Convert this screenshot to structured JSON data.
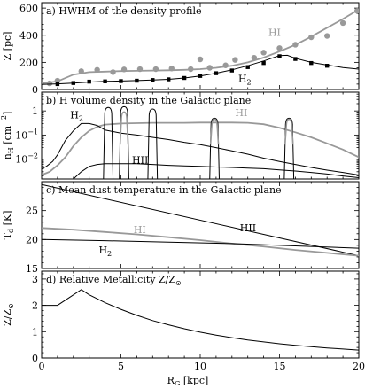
{
  "x_axis": {
    "label": "R",
    "label_sub": "G",
    "label_unit": " [kpc]",
    "range": [
      0,
      20
    ],
    "ticks": [
      "0",
      "5",
      "10",
      "15",
      "20"
    ]
  },
  "chart_data": [
    {
      "id": "a",
      "type": "line",
      "title": "a) HWHM of the density profile",
      "ylabel": "Z [pc]",
      "ylim": [
        0,
        640
      ],
      "yscale": "linear",
      "yticks": [
        {
          "v": 0,
          "t": "0"
        },
        {
          "v": 200,
          "t": "200"
        },
        {
          "v": 400,
          "t": "400"
        },
        {
          "v": 600,
          "t": "600"
        }
      ],
      "series": [
        {
          "name": "HI",
          "color": "#999999",
          "kind": "line",
          "x": [
            0,
            1,
            2,
            3,
            4,
            5,
            6,
            7,
            8,
            9,
            10,
            11,
            12,
            13,
            14,
            15,
            16,
            17,
            18,
            19,
            20
          ],
          "y": [
            45,
            60,
            110,
            128,
            132,
            136,
            138,
            140,
            142,
            145,
            150,
            160,
            175,
            200,
            235,
            280,
            330,
            390,
            455,
            520,
            590
          ]
        },
        {
          "name": "HI obs",
          "color": "#999999",
          "kind": "points",
          "marker": "circle",
          "x": [
            0.5,
            1,
            2.5,
            3.5,
            4.5,
            5.2,
            6.2,
            7.2,
            8.2,
            9.4,
            10,
            10.6,
            11.6,
            12.2,
            13.4,
            14,
            15,
            16,
            17,
            18,
            19,
            19.9
          ],
          "y": [
            45,
            65,
            135,
            145,
            128,
            148,
            150,
            150,
            155,
            150,
            222,
            160,
            178,
            218,
            234,
            272,
            305,
            330,
            385,
            395,
            490,
            580
          ]
        },
        {
          "name": "H2",
          "color": "#000000",
          "kind": "line",
          "x": [
            0,
            1,
            2,
            3,
            4,
            5,
            6,
            7,
            8,
            9,
            10,
            11,
            12,
            13,
            14,
            15,
            15.5,
            16,
            17,
            18,
            19,
            20
          ],
          "y": [
            38,
            42,
            48,
            55,
            60,
            63,
            66,
            70,
            75,
            85,
            100,
            120,
            145,
            175,
            210,
            250,
            252,
            230,
            200,
            180,
            162,
            150
          ]
        },
        {
          "name": "H2 obs",
          "color": "#000000",
          "kind": "points",
          "marker": "square",
          "x": [
            1,
            2,
            3,
            4,
            5,
            6,
            7,
            8,
            9,
            10,
            11,
            12,
            13,
            14,
            15,
            16,
            17,
            18
          ],
          "y": [
            40,
            48,
            58,
            60,
            62,
            65,
            70,
            75,
            85,
            100,
            120,
            140,
            165,
            195,
            245,
            225,
            195,
            175
          ]
        }
      ],
      "annotations": [
        {
          "text": "HI",
          "x": 14.3,
          "y": 395,
          "color": "#999999"
        },
        {
          "text": "H",
          "sub": "2",
          "x": 12.4,
          "y": 55,
          "color": "#000000"
        }
      ]
    },
    {
      "id": "b",
      "type": "line",
      "title": "b) H volume density in the Galactic plane",
      "ylabel": "n",
      "ylabel_sub": "H",
      "ylabel_unit": " [cm",
      "ylabel_sup": "−2",
      "ylabel_end": "]",
      "ylim": [
        0.0015,
        6
      ],
      "yscale": "log",
      "yticks": [
        {
          "v": 0.01,
          "t": "10",
          "sup": "−2"
        },
        {
          "v": 0.1,
          "t": "10",
          "sup": "−1"
        },
        {
          "v": 1,
          "t": "1"
        }
      ],
      "series": [
        {
          "name": "HI",
          "color": "#999999",
          "kind": "line",
          "x": [
            0,
            0.5,
            1,
            1.5,
            2,
            2.5,
            3,
            3.5,
            4,
            5,
            6,
            7,
            8,
            9,
            10,
            11,
            12,
            13,
            14,
            15,
            16,
            17,
            18,
            19,
            20
          ],
          "y": [
            0.0022,
            0.003,
            0.0055,
            0.012,
            0.035,
            0.08,
            0.15,
            0.22,
            0.27,
            0.3,
            0.31,
            0.32,
            0.32,
            0.32,
            0.33,
            0.33,
            0.33,
            0.32,
            0.28,
            0.2,
            0.13,
            0.08,
            0.045,
            0.025,
            0.012
          ]
        },
        {
          "name": "H2",
          "color": "#000000",
          "kind": "line",
          "x": [
            0,
            0.3,
            0.7,
            1,
            1.5,
            2,
            2.5,
            3,
            3.5,
            4,
            5,
            6,
            7,
            8,
            9,
            10,
            11,
            12,
            13,
            14,
            15,
            16,
            17,
            18,
            19,
            20
          ],
          "y": [
            0.004,
            0.005,
            0.008,
            0.015,
            0.06,
            0.15,
            0.3,
            0.3,
            0.25,
            0.16,
            0.12,
            0.1,
            0.08,
            0.065,
            0.05,
            0.04,
            0.03,
            0.022,
            0.016,
            0.011,
            0.008,
            0.006,
            0.0045,
            0.0035,
            0.0028,
            0.0022
          ]
        },
        {
          "name": "HII",
          "color": "#000000",
          "kind": "line",
          "x": [
            2,
            2.5,
            3,
            3.5,
            4,
            5,
            6,
            7,
            8,
            9,
            10,
            11,
            12,
            13,
            14,
            15,
            16,
            17,
            18,
            19,
            20
          ],
          "y": [
            0.0015,
            0.003,
            0.005,
            0.006,
            0.0065,
            0.0065,
            0.0065,
            0.006,
            0.0055,
            0.0052,
            0.005,
            0.0047,
            0.0045,
            0.0042,
            0.004,
            0.0036,
            0.0032,
            0.0028,
            0.0024,
            0.002,
            0.0017
          ]
        }
      ],
      "peaks": [
        {
          "x": 4.2,
          "top": 1.4,
          "w": 0.22
        },
        {
          "x": 5.2,
          "top": 1.5,
          "w": 0.22
        },
        {
          "x": 7.0,
          "top": 1.2,
          "w": 0.22
        },
        {
          "x": 10.9,
          "top": 0.5,
          "w": 0.22
        },
        {
          "x": 15.6,
          "top": 0.5,
          "w": 0.22
        }
      ],
      "peaks_gray": [
        {
          "x": 5.2,
          "top": 0.9,
          "w": 0.17
        },
        {
          "x": 10.9,
          "top": 0.45,
          "w": 0.17
        },
        {
          "x": 15.6,
          "top": 0.45,
          "w": 0.17
        }
      ],
      "annotations": [
        {
          "text": "H",
          "sub": "2",
          "x": 1.8,
          "y": 0.5,
          "color": "#000000"
        },
        {
          "text": "HI",
          "x": 12.2,
          "y": 0.6,
          "color": "#999999"
        },
        {
          "text": "HII",
          "x": 5.7,
          "y": 0.0065,
          "color": "#000000"
        }
      ]
    },
    {
      "id": "c",
      "type": "line",
      "title": "c) Mean dust temperature in the Galactic plane",
      "ylabel": "T",
      "ylabel_sub": "d",
      "ylabel_unit": " [K]",
      "ylim": [
        15,
        30
      ],
      "yscale": "linear",
      "yticks": [
        {
          "v": 15,
          "t": "15"
        },
        {
          "v": 20,
          "t": "20"
        },
        {
          "v": 25,
          "t": "25"
        }
      ],
      "series": [
        {
          "name": "HII",
          "color": "#000000",
          "kind": "line",
          "x": [
            0,
            20
          ],
          "y": [
            29.5,
            17.2
          ]
        },
        {
          "name": "HI",
          "color": "#999999",
          "kind": "line",
          "x": [
            0,
            2,
            4,
            6,
            8,
            10,
            12,
            14,
            16,
            18,
            20
          ],
          "y": [
            22,
            21.7,
            21.3,
            20.9,
            20.4,
            19.9,
            19.3,
            18.8,
            18.2,
            17.7,
            17.2
          ]
        },
        {
          "name": "H2",
          "color": "#000000",
          "kind": "line",
          "x": [
            0,
            4,
            8,
            12,
            16,
            20
          ],
          "y": [
            20.0,
            19.8,
            19.55,
            19.3,
            18.9,
            18.5
          ]
        }
      ],
      "annotations": [
        {
          "text": "HII",
          "x": 12.5,
          "y": 21.4,
          "color": "#000000"
        },
        {
          "text": "HI",
          "x": 5.8,
          "y": 21.1,
          "color": "#999999"
        },
        {
          "text": "H",
          "sub": "2",
          "x": 3.6,
          "y": 17.6,
          "color": "#000000"
        }
      ]
    },
    {
      "id": "d",
      "type": "line",
      "title": "d) Relative Metallicity Z/Z",
      "title_sub": "⊙",
      "ylabel": "Z/Z",
      "ylabel_sub": "⊙",
      "ylim": [
        0,
        3.3
      ],
      "yscale": "linear",
      "yticks": [
        {
          "v": 0,
          "t": "0"
        },
        {
          "v": 1,
          "t": "1"
        },
        {
          "v": 2,
          "t": "2"
        },
        {
          "v": 3,
          "t": "3"
        }
      ],
      "series": [
        {
          "name": "metallicity",
          "color": "#000000",
          "kind": "line",
          "x": [
            0,
            1,
            2.5,
            3,
            4,
            5,
            6,
            7,
            8,
            9,
            10,
            11,
            12,
            13,
            14,
            15,
            16,
            17,
            18,
            19,
            20
          ],
          "y": [
            2.0,
            2.0,
            2.6,
            2.4,
            2.1,
            1.85,
            1.62,
            1.42,
            1.26,
            1.11,
            0.98,
            0.87,
            0.77,
            0.68,
            0.61,
            0.54,
            0.48,
            0.43,
            0.38,
            0.34,
            0.3
          ]
        }
      ],
      "annotations": []
    }
  ]
}
